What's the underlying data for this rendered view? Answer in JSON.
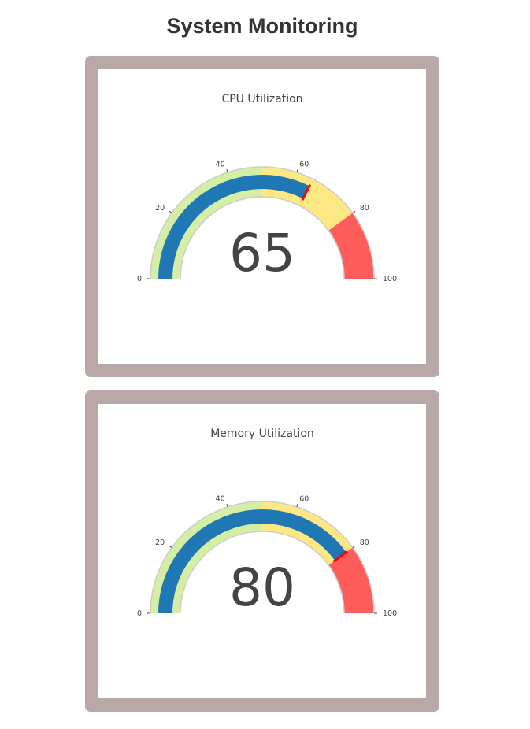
{
  "page": {
    "title": "System Monitoring"
  },
  "chart_data": [
    {
      "type": "gauge",
      "title": "CPU Utilization",
      "value": 65,
      "threshold": 65,
      "range": [
        0,
        100
      ],
      "tick_labels": [
        "0",
        "20",
        "40",
        "60",
        "80",
        "100"
      ],
      "ticks": [
        0,
        20,
        40,
        60,
        80,
        100
      ],
      "steps": [
        {
          "range": [
            0,
            50
          ],
          "color": "#d4efa4"
        },
        {
          "range": [
            50,
            80
          ],
          "color": "#fde883"
        },
        {
          "range": [
            80,
            100
          ],
          "color": "#ff5c5c"
        }
      ],
      "bar_color": "#1f77b4",
      "threshold_color": "#ff0000",
      "gauge_border_color": "#cccccc"
    },
    {
      "type": "gauge",
      "title": "Memory Utilization",
      "value": 80,
      "threshold": 80,
      "range": [
        0,
        100
      ],
      "tick_labels": [
        "0",
        "20",
        "40",
        "60",
        "80",
        "100"
      ],
      "ticks": [
        0,
        20,
        40,
        60,
        80,
        100
      ],
      "steps": [
        {
          "range": [
            0,
            50
          ],
          "color": "#d4efa4"
        },
        {
          "range": [
            50,
            80
          ],
          "color": "#fde883"
        },
        {
          "range": [
            80,
            100
          ],
          "color": "#ff5c5c"
        }
      ],
      "bar_color": "#1f77b4",
      "threshold_color": "#ff0000",
      "gauge_border_color": "#cccccc"
    }
  ]
}
